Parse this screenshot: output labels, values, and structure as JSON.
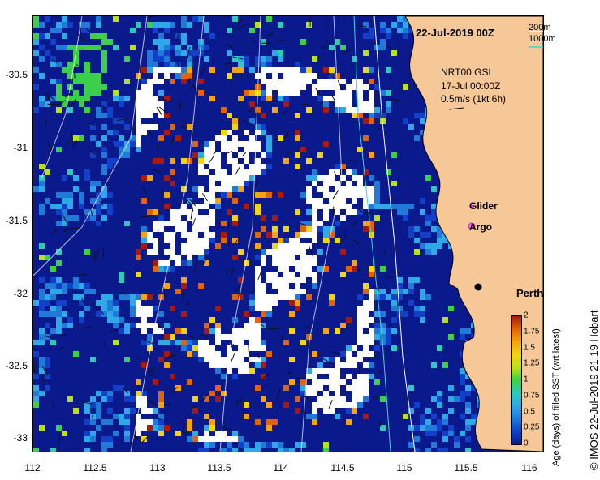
{
  "header": {
    "date": "22-Jul-2019 00Z"
  },
  "depth_legend": {
    "label_200": "200m",
    "label_1000": "1000m",
    "color_200": "#ffffff",
    "color_1000": "#3fd6d6"
  },
  "current_legend": {
    "line1": "NRT00 GSL",
    "line2": "17-Jul 00:00Z",
    "line3": "0.5m/s (1kt 6h)"
  },
  "markers": {
    "glider": "Glider",
    "argo": "Argo",
    "city": "Perth",
    "glider_color": "#e02ee0",
    "argo_color": "#e02ee0"
  },
  "axes": {
    "x_ticks": [
      "112",
      "112.5",
      "113",
      "113.5",
      "114",
      "114.5",
      "115",
      "115.5",
      "116"
    ],
    "y_ticks": [
      "-30.5",
      "-31",
      "-31.5",
      "-32",
      "-32.5",
      "-33"
    ]
  },
  "colorbar": {
    "ticks": [
      "0",
      "0.25",
      "0.5",
      "0.75",
      "1",
      "1.25",
      "1.5",
      "1.75",
      "2"
    ],
    "label": "Age (days) of filled SST (wrt latest)",
    "colors": [
      "#0a1a8c",
      "#1240c8",
      "#1f7ad8",
      "#2fa8e8",
      "#2ec9b8",
      "#3ccf4a",
      "#b8e01c",
      "#f3d414",
      "#f3a314",
      "#e0640c",
      "#a81a10"
    ]
  },
  "credit": "© IMOS 22-Jul-2019 21:19 Hobart",
  "land_color": "#f6c898"
}
